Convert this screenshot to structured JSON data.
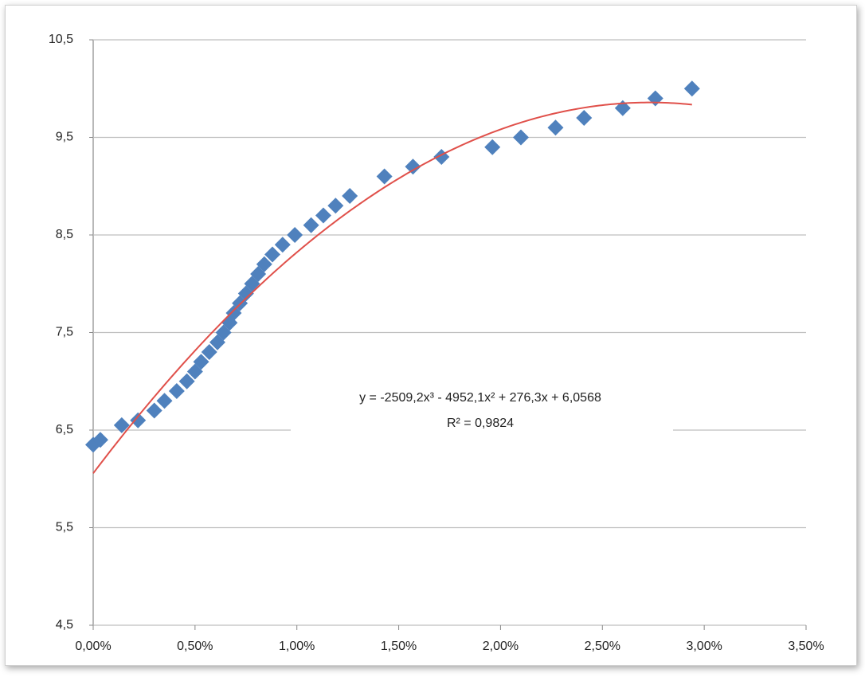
{
  "chart_data": {
    "type": "scatter",
    "x": [
      0,
      0.00035,
      0.0014,
      0.0022,
      0.003,
      0.0035,
      0.0041,
      0.0046,
      0.005,
      0.0053,
      0.0057,
      0.0061,
      0.0064,
      0.0067,
      0.0069,
      0.0072,
      0.0075,
      0.0078,
      0.0081,
      0.0084,
      0.0088,
      0.0093,
      0.0099,
      0.0107,
      0.0113,
      0.0119,
      0.0126,
      0.0143,
      0.0157,
      0.0171,
      0.0196,
      0.021,
      0.0227,
      0.0241,
      0.026,
      0.0276,
      0.0294
    ],
    "values": [
      6.35,
      6.4,
      6.55,
      6.6,
      6.7,
      6.8,
      6.9,
      7.0,
      7.1,
      7.2,
      7.3,
      7.4,
      7.5,
      7.6,
      7.7,
      7.8,
      7.9,
      8.0,
      8.1,
      8.2,
      8.3,
      8.4,
      8.5,
      8.6,
      8.7,
      8.8,
      8.9,
      9.1,
      9.2,
      9.3,
      9.4,
      9.5,
      9.6,
      9.7,
      9.8,
      9.9,
      10.0
    ],
    "color": "#4f81bd",
    "xlim": [
      0,
      0.035
    ],
    "xticks": [
      {
        "value": 0,
        "label": "0,00%"
      },
      {
        "value": 0.005,
        "label": "0,50%"
      },
      {
        "value": 0.01,
        "label": "1,00%"
      },
      {
        "value": 0.015,
        "label": "1,50%"
      },
      {
        "value": 0.02,
        "label": "2,00%"
      },
      {
        "value": 0.025,
        "label": "2,50%"
      },
      {
        "value": 0.03,
        "label": "3,00%"
      },
      {
        "value": 0.035,
        "label": "3,50%"
      }
    ],
    "ylim": [
      4.5,
      10.5
    ],
    "yticks": [
      {
        "value": 4.5,
        "label": "4,5"
      },
      {
        "value": 5.5,
        "label": "5,5"
      },
      {
        "value": 6.5,
        "label": "6,5"
      },
      {
        "value": 7.5,
        "label": "7,5"
      },
      {
        "value": 8.5,
        "label": "8,5"
      },
      {
        "value": 9.5,
        "label": "9,5"
      },
      {
        "value": 10.5,
        "label": "10,5"
      }
    ],
    "grid": true,
    "trendline": {
      "type": "polynomial",
      "coefficients": [
        -2509.2,
        -4952.1,
        276.3,
        6.0568
      ],
      "xrange": [
        0,
        0.0294
      ],
      "color": "#e0504a",
      "equation": "y = -2509,2x³ - 4952,1x² + 276,3x + 6,0568",
      "r_squared": 0.9824,
      "r_squared_label": "R² = 0,9824"
    }
  }
}
